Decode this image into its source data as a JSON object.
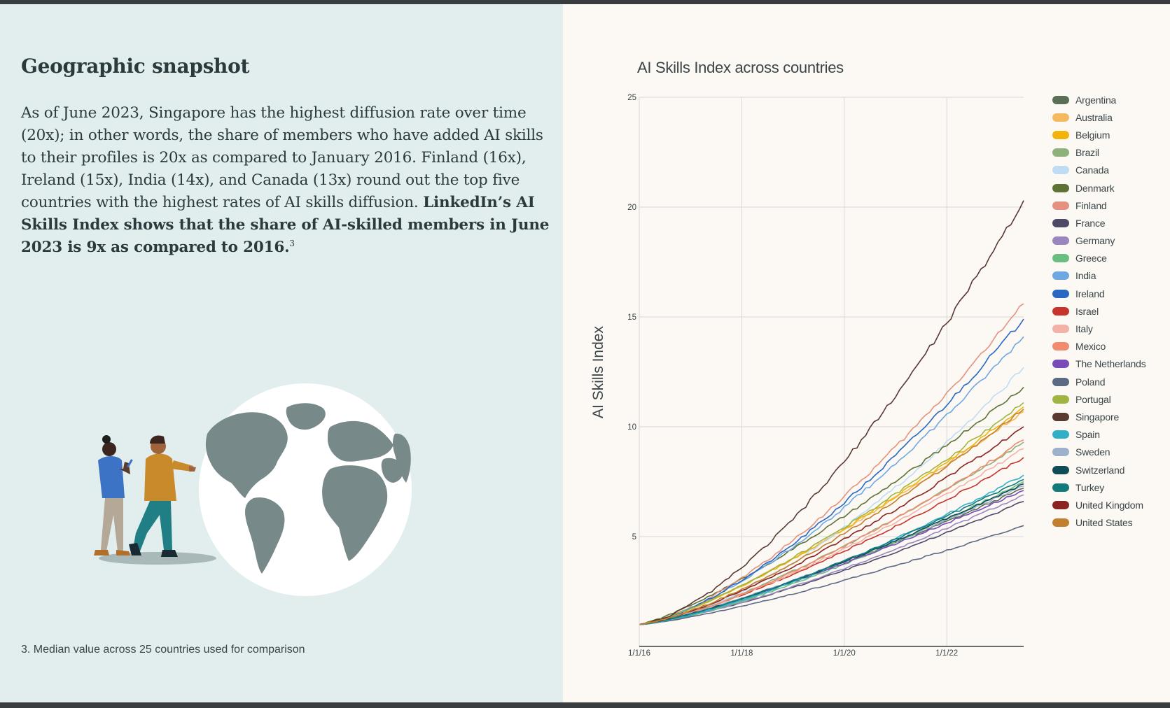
{
  "page": {
    "heading": "Geographic snapshot",
    "body_intro": "As of June 2023, Singapore has the highest diffusion rate over time (20x); in other words, the share of members who have added AI skills to their profiles is 20x as compared to January 2016. Finland (16x), Ireland (15x), India (14x), and Canada (13x) round out the top five countries with the highest rates of AI skills diffusion. ",
    "body_bold": "LinkedIn’s AI Skills Index shows that the share of AI-skilled members in June 2023 is 9x as compared to 2016.",
    "body_footnote_ref": "3",
    "footnote": "3. Median value across 25 countries used for comparison"
  },
  "colors": {
    "left_background": "#e2eeee",
    "right_background": "#fcf9f5",
    "text": "#2b3a3c",
    "grid": "#d8d8d8",
    "axis": "#3a3d40"
  },
  "chart_data": {
    "type": "line",
    "title": "AI Skills Index across countries",
    "xlabel": "",
    "ylabel": "AI Skills Index",
    "x_ticks": [
      "1/1/16",
      "1/1/18",
      "1/1/20",
      "1/1/22"
    ],
    "x_range": [
      "2016-01",
      "2023-06"
    ],
    "ylim": [
      0,
      25
    ],
    "y_ticks": [
      5,
      10,
      15,
      20,
      25
    ],
    "grid": true,
    "legend_position": "right",
    "start_value": 1,
    "series": [
      {
        "name": "Argentina",
        "color": "#5b6e57",
        "final": 7.2
      },
      {
        "name": "Australia",
        "color": "#f5b960",
        "final": 10.7
      },
      {
        "name": "Belgium",
        "color": "#f2b40c",
        "final": 10.9
      },
      {
        "name": "Brazil",
        "color": "#8db07c",
        "final": 9.3
      },
      {
        "name": "Canada",
        "color": "#bfdcf5",
        "final": 12.7
      },
      {
        "name": "Denmark",
        "color": "#5e7233",
        "final": 11.8
      },
      {
        "name": "Finland",
        "color": "#e5917f",
        "final": 15.6
      },
      {
        "name": "France",
        "color": "#4c4a66",
        "final": 6.6
      },
      {
        "name": "Germany",
        "color": "#9a86bd",
        "final": 6.9
      },
      {
        "name": "Greece",
        "color": "#6bbe82",
        "final": 7.5
      },
      {
        "name": "India",
        "color": "#6fa8e0",
        "final": 14.1
      },
      {
        "name": "Ireland",
        "color": "#2868c1",
        "final": 14.9
      },
      {
        "name": "Israel",
        "color": "#c7342b",
        "final": 8.6
      },
      {
        "name": "Italy",
        "color": "#f3b1a8",
        "final": 9.0
      },
      {
        "name": "Mexico",
        "color": "#f28a6d",
        "final": 9.4
      },
      {
        "name": "The Netherlands",
        "color": "#7a4ab8",
        "final": 7.1
      },
      {
        "name": "Poland",
        "color": "#5c6a84",
        "final": 5.5
      },
      {
        "name": "Portugal",
        "color": "#9fb53f",
        "final": 11.1
      },
      {
        "name": "Singapore",
        "color": "#5a3930",
        "final": 20.3
      },
      {
        "name": "Spain",
        "color": "#2fb0c7",
        "final": 7.8
      },
      {
        "name": "Sweden",
        "color": "#9db1cc",
        "final": 7.3
      },
      {
        "name": "Switzerland",
        "color": "#0f4c56",
        "final": 7.4
      },
      {
        "name": "Turkey",
        "color": "#137a7c",
        "final": 7.6
      },
      {
        "name": "United Kingdom",
        "color": "#8a2322",
        "final": 10.0
      },
      {
        "name": "United States",
        "color": "#c27f2e",
        "final": 10.8
      }
    ]
  }
}
